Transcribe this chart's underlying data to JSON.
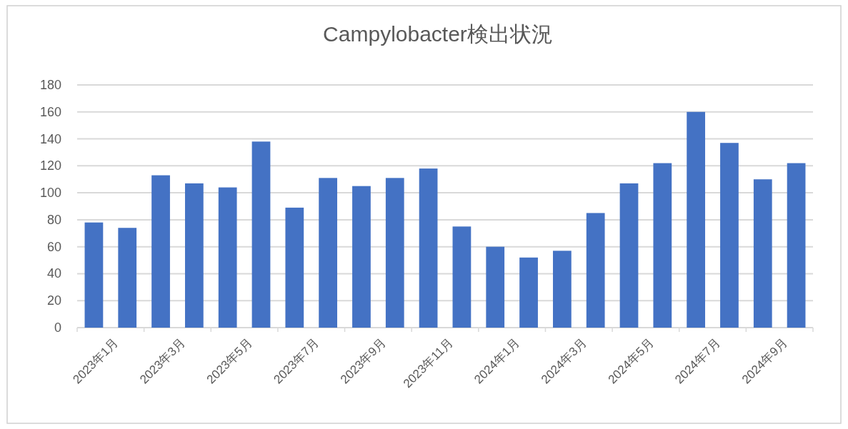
{
  "chart_data": {
    "type": "bar",
    "title": "Campylobacter検出状況",
    "categories": [
      "2023年1月",
      null,
      "2023年3月",
      null,
      "2023年5月",
      null,
      "2023年7月",
      null,
      "2023年9月",
      null,
      "2023年11月",
      null,
      "2024年1月",
      null,
      "2024年3月",
      null,
      "2024年5月",
      null,
      "2024年7月",
      null,
      "2024年9月",
      null
    ],
    "values": [
      78,
      74,
      113,
      107,
      104,
      138,
      89,
      111,
      105,
      111,
      118,
      75,
      60,
      52,
      57,
      85,
      107,
      122,
      160,
      137,
      110,
      122
    ],
    "color": "#4472c4",
    "ylim": [
      0,
      180
    ],
    "yticks": [
      0,
      20,
      40,
      60,
      80,
      100,
      120,
      140,
      160,
      180
    ],
    "grid": "y"
  }
}
